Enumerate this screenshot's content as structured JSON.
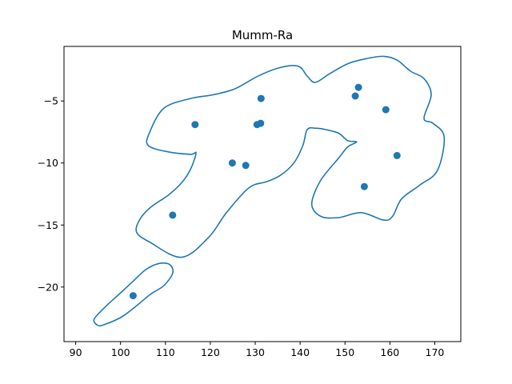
{
  "chart_data": {
    "type": "scatter",
    "title": "Mumm-Ra",
    "xlabel": "",
    "ylabel": "",
    "xlim": [
      87.4,
      175.8
    ],
    "ylim": [
      -24.4,
      -0.6
    ],
    "xticks": [
      90,
      100,
      110,
      120,
      130,
      140,
      150,
      160,
      170
    ],
    "yticks": [
      -5,
      -10,
      -15,
      -20
    ],
    "color": "#1f77b4",
    "grid": false,
    "points": [
      {
        "x": 102.8,
        "y": -20.7
      },
      {
        "x": 111.6,
        "y": -14.2
      },
      {
        "x": 116.6,
        "y": -6.9
      },
      {
        "x": 124.9,
        "y": -10.0
      },
      {
        "x": 127.9,
        "y": -10.2
      },
      {
        "x": 130.4,
        "y": -6.9
      },
      {
        "x": 131.2,
        "y": -6.8
      },
      {
        "x": 131.3,
        "y": -4.8
      },
      {
        "x": 152.3,
        "y": -4.6
      },
      {
        "x": 153.0,
        "y": -3.9
      },
      {
        "x": 154.3,
        "y": -11.9
      },
      {
        "x": 159.1,
        "y": -5.7
      },
      {
        "x": 161.6,
        "y": -9.4
      }
    ],
    "contours": [
      [
        [
          96.6,
          -23.0
        ],
        [
          100.3,
          -22.4
        ],
        [
          103.6,
          -21.5
        ],
        [
          106.6,
          -20.6
        ],
        [
          109.6,
          -19.9
        ],
        [
          111.6,
          -18.9
        ],
        [
          111.0,
          -18.2
        ],
        [
          108.6,
          -18.1
        ],
        [
          105.6,
          -18.6
        ],
        [
          102.6,
          -19.6
        ],
        [
          99.6,
          -20.6
        ],
        [
          96.6,
          -21.6
        ],
        [
          94.1,
          -22.6
        ],
        [
          95.0,
          -23.1
        ],
        [
          96.6,
          -23.0
        ]
      ],
      [
        [
          128.6,
          -12.0
        ],
        [
          123.6,
          -14.0
        ],
        [
          119.6,
          -16.0
        ],
        [
          113.6,
          -17.6
        ],
        [
          106.6,
          -16.4
        ],
        [
          103.6,
          -15.6
        ],
        [
          104.2,
          -14.6
        ],
        [
          106.6,
          -13.6
        ],
        [
          110.6,
          -12.6
        ],
        [
          113.6,
          -11.6
        ],
        [
          115.6,
          -10.5
        ],
        [
          116.8,
          -9.2
        ],
        [
          115.6,
          -9.3
        ],
        [
          110.6,
          -9.1
        ],
        [
          106.2,
          -8.6
        ],
        [
          106.4,
          -7.6
        ],
        [
          109.6,
          -5.6
        ],
        [
          115.6,
          -4.8
        ],
        [
          120.6,
          -4.5
        ],
        [
          125.6,
          -4.0
        ],
        [
          130.6,
          -3.0
        ],
        [
          135.6,
          -2.3
        ],
        [
          139.6,
          -2.2
        ],
        [
          141.6,
          -3.0
        ],
        [
          143.4,
          -3.5
        ],
        [
          146.6,
          -2.8
        ],
        [
          150.6,
          -2.0
        ],
        [
          154.6,
          -1.6
        ],
        [
          158.6,
          -1.4
        ],
        [
          161.6,
          -1.7
        ],
        [
          164.6,
          -2.6
        ],
        [
          167.6,
          -3.2
        ],
        [
          169.2,
          -4.5
        ],
        [
          167.6,
          -6.4
        ],
        [
          169.6,
          -6.8
        ],
        [
          172.1,
          -7.9
        ],
        [
          170.6,
          -10.6
        ],
        [
          166.6,
          -11.8
        ],
        [
          162.6,
          -12.9
        ],
        [
          160.6,
          -14.3
        ],
        [
          158.6,
          -14.6
        ],
        [
          153.6,
          -14.0
        ],
        [
          148.6,
          -14.4
        ],
        [
          144.6,
          -14.3
        ],
        [
          142.6,
          -13.3
        ],
        [
          144.6,
          -11.4
        ],
        [
          148.6,
          -9.6
        ],
        [
          150.6,
          -8.7
        ],
        [
          152.6,
          -8.3
        ],
        [
          150.6,
          -8.2
        ],
        [
          148.6,
          -7.6
        ],
        [
          145.6,
          -7.3
        ],
        [
          143.6,
          -7.2
        ],
        [
          141.6,
          -7.3
        ],
        [
          140.6,
          -8.6
        ],
        [
          138.6,
          -10.0
        ],
        [
          135.6,
          -11.0
        ],
        [
          132.6,
          -11.5
        ],
        [
          128.6,
          -12.0
        ]
      ]
    ]
  }
}
